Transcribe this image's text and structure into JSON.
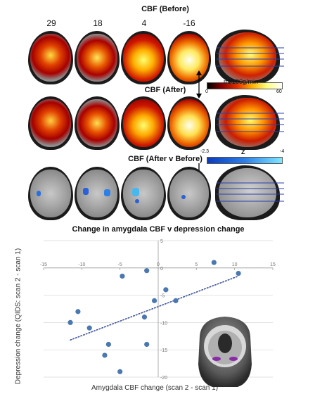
{
  "figure": {
    "panel_titles": [
      "CBF (Before)",
      "CBF (After)",
      "CBF (After v Before)"
    ],
    "slice_numbers": [
      "29",
      "18",
      "4",
      "-16"
    ],
    "cbf_colorbar": {
      "min": "0",
      "max": "60",
      "unit": "ml/100g/min"
    },
    "z_colorbar": {
      "min": "-2.3",
      "max": "-4",
      "unit": "Z"
    },
    "colors": {
      "hot_low": "#b00000",
      "hot_high": "#ffff66",
      "cool_low": "#1a5fd8",
      "cool_high": "#7fe8ff",
      "marker": "#4a78b0"
    }
  },
  "chart_data": {
    "type": "scatter",
    "title": "Change in amygdala CBF v depression change",
    "xlabel": "Amygdala CBF change (scan 2 - scan 1)",
    "ylabel": "Depression change (QIDS: scan 2 - scan 1)",
    "xlim": [
      -15,
      15
    ],
    "ylim": [
      -20,
      5
    ],
    "x_ticks": [
      "-15",
      "-10",
      "-5",
      "0",
      "5",
      "10",
      "15"
    ],
    "y_ticks": [
      "5",
      "0",
      "-5",
      "-10",
      "-15",
      "-20"
    ],
    "grid": "horizontal",
    "trendline": "dotted linear",
    "points": [
      {
        "x": 7.3,
        "y": 1
      },
      {
        "x": 10.5,
        "y": -1
      },
      {
        "x": -1.5,
        "y": -0.5
      },
      {
        "x": -4.7,
        "y": -1.5
      },
      {
        "x": 1,
        "y": -4
      },
      {
        "x": -10.5,
        "y": -8
      },
      {
        "x": 2.3,
        "y": -6
      },
      {
        "x": -0.5,
        "y": -6
      },
      {
        "x": -1.8,
        "y": -9
      },
      {
        "x": -11.5,
        "y": -10
      },
      {
        "x": -9,
        "y": -11
      },
      {
        "x": -6.5,
        "y": -14
      },
      {
        "x": -1.5,
        "y": -14
      },
      {
        "x": -7,
        "y": -16
      },
      {
        "x": -5,
        "y": -19
      }
    ],
    "trend": [
      {
        "x": -11.5,
        "y": -13.2
      },
      {
        "x": 10.5,
        "y": -1.5
      }
    ]
  }
}
